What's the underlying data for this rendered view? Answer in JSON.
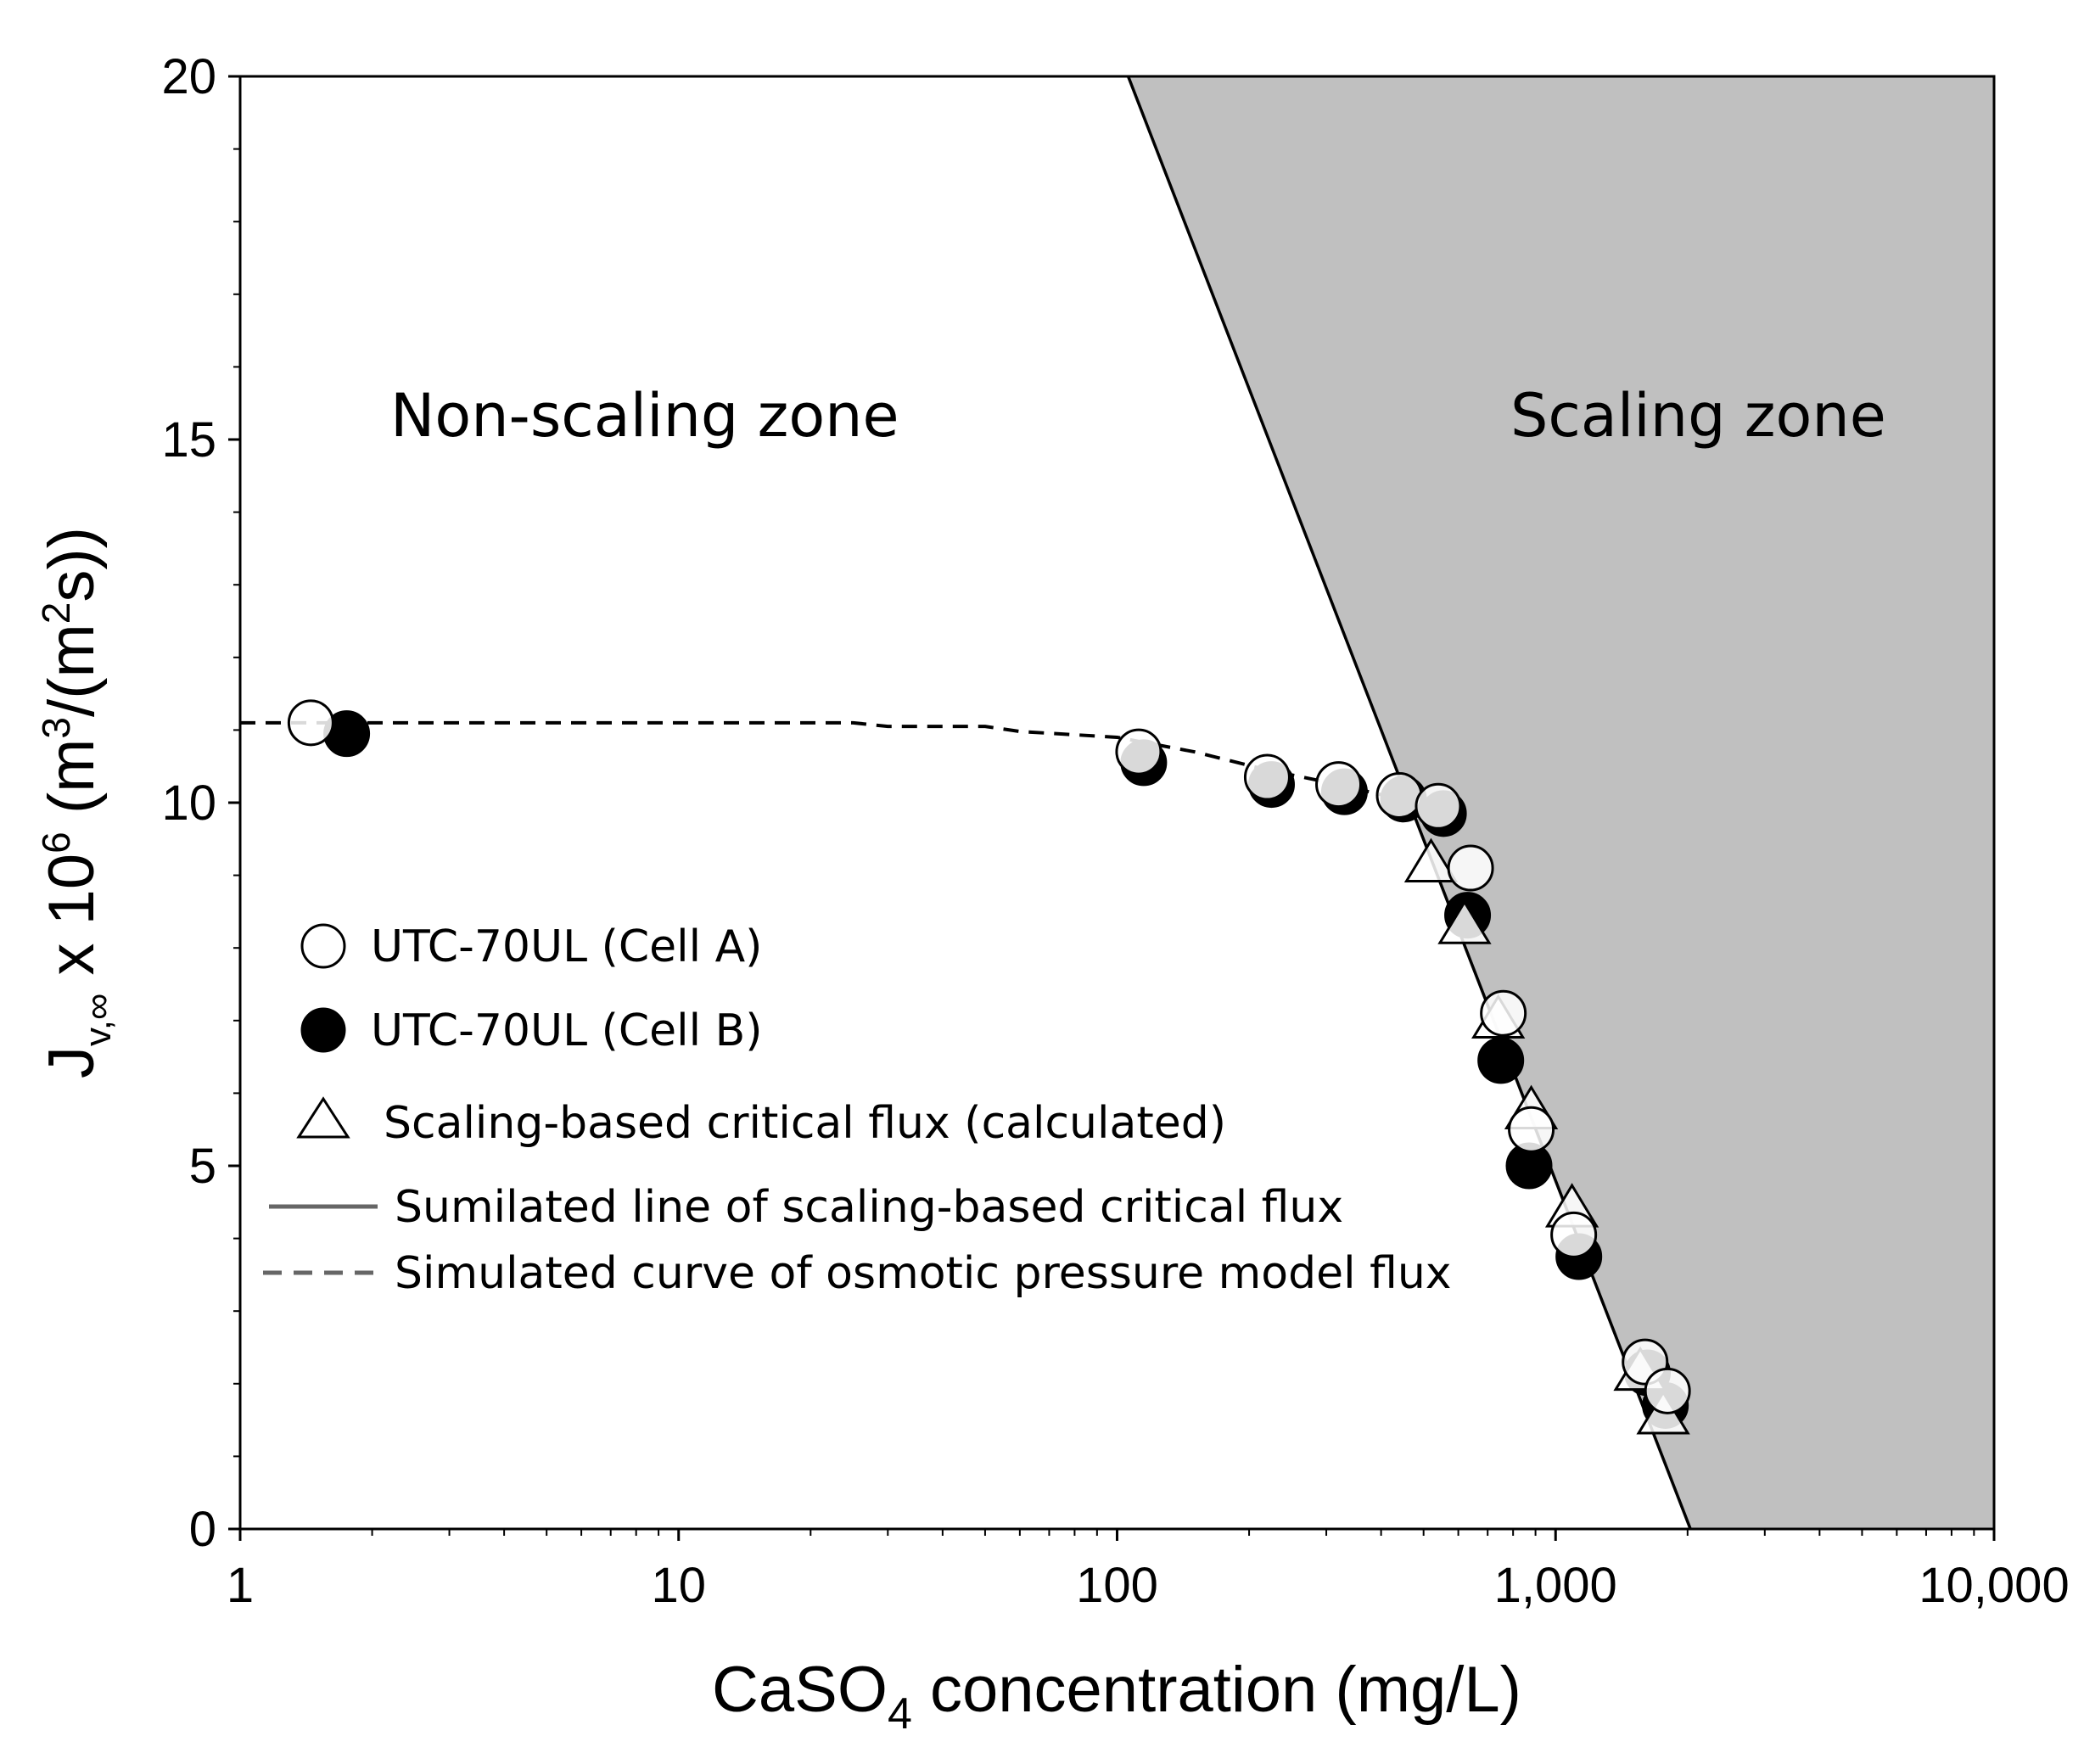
{
  "chart_data": {
    "type": "scatter",
    "x_scale": "log",
    "xlim": [
      1,
      10000
    ],
    "ylim": [
      0,
      20
    ],
    "x_ticks": [
      1,
      10,
      100,
      1000,
      10000
    ],
    "x_tick_labels": [
      "1",
      "10",
      "100",
      "1,000",
      "10,000"
    ],
    "y_ticks": [
      0,
      5,
      10,
      15,
      20
    ],
    "y_tick_labels": [
      "0",
      "5",
      "10",
      "15",
      "20"
    ],
    "xlabel": {
      "main": "CaSO",
      "sub": "4",
      "rest": " concentration (mg/L)"
    },
    "ylabel": {
      "j": "J",
      "sub": "v,∞",
      "mid": " x 10",
      "sup6": "6",
      "units_a": " (m",
      "sup3": "3",
      "units_b": "/(m",
      "sup2": "2",
      "units_c": "s))"
    },
    "zones": {
      "non_scaling": "Non-scaling zone",
      "scaling": "Scaling zone"
    },
    "shaded_color": "#c0c0c0",
    "series": [
      {
        "name": "UTC-70UL (Cell A)",
        "marker": "open-circle",
        "points": [
          [
            1.45,
            11.1
          ],
          [
            112,
            10.7
          ],
          [
            220,
            10.35
          ],
          [
            320,
            10.25
          ],
          [
            440,
            10.1
          ],
          [
            540,
            9.95
          ],
          [
            640,
            9.1
          ],
          [
            760,
            7.1
          ],
          [
            880,
            5.5
          ],
          [
            1100,
            4.05
          ],
          [
            1600,
            2.3
          ],
          [
            1800,
            1.9
          ]
        ]
      },
      {
        "name": "UTC-70UL (Cell B)",
        "marker": "filled-circle",
        "points": [
          [
            1.75,
            10.95
          ],
          [
            115,
            10.55
          ],
          [
            225,
            10.25
          ],
          [
            330,
            10.15
          ],
          [
            450,
            10.05
          ],
          [
            555,
            9.85
          ],
          [
            630,
            8.45
          ],
          [
            750,
            6.45
          ],
          [
            870,
            5.0
          ],
          [
            1130,
            3.75
          ],
          [
            1620,
            2.15
          ],
          [
            1780,
            1.7
          ]
        ]
      },
      {
        "name": "Scaling-based critical flux (calculated)",
        "marker": "open-triangle",
        "points": [
          [
            520,
            9.2
          ],
          [
            620,
            8.35
          ],
          [
            740,
            7.05
          ],
          [
            880,
            5.8
          ],
          [
            1090,
            4.45
          ],
          [
            1560,
            2.2
          ],
          [
            1760,
            1.6
          ]
        ]
      }
    ],
    "lines": [
      {
        "name": "Sumilated line of scaling-based critical flux",
        "style": "solid",
        "points": [
          [
            106,
            20
          ],
          [
            2030,
            0
          ]
        ]
      },
      {
        "name": "Simulated curve of osmotic pressure model flux",
        "style": "dashed",
        "points": [
          [
            1,
            11.1
          ],
          [
            2,
            11.1
          ],
          [
            10,
            11.1
          ],
          [
            25,
            11.1
          ],
          [
            30,
            11.05
          ],
          [
            50,
            11.05
          ],
          [
            60,
            10.98
          ],
          [
            100,
            10.9
          ],
          [
            150,
            10.7
          ],
          [
            220,
            10.45
          ],
          [
            320,
            10.25
          ],
          [
            440,
            10.05
          ],
          [
            530,
            9.85
          ]
        ]
      }
    ],
    "legend_position": "center-left"
  }
}
